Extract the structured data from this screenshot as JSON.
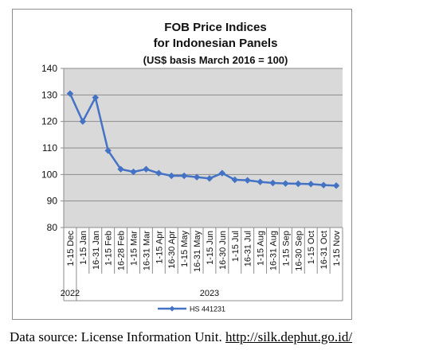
{
  "chart_data": {
    "type": "line",
    "title": [
      "FOB Price Indices",
      "for Indonesian Panels",
      "(US$ basis March 2016 = 100)"
    ],
    "ylim": [
      80,
      140
    ],
    "yticks": [
      80,
      90,
      100,
      110,
      120,
      130,
      140
    ],
    "categories": [
      "1-15 Dec",
      "1-15 Jan",
      "16-31 Jan",
      "1-15 Feb",
      "16-28 Feb",
      "1-15 Mar",
      "16-31 Mar",
      "1-15 Apr",
      "16-30 Apr",
      "1-15 May",
      "16-31 May",
      "1-15 Jun",
      "16-30 Jun",
      "1-15 Jul",
      "16-31 Jul",
      "1-15 Aug",
      "16-31 Aug",
      "1-15 Sep",
      "16-30 Sep",
      "1-15 Oct",
      "16-31 Oct",
      "1-15 Nov"
    ],
    "year_labels": [
      "2022",
      "2023"
    ],
    "series": [
      {
        "name": "HS 441231",
        "color": "#4472c4",
        "values": [
          130.5,
          120.0,
          129.0,
          109.0,
          102.0,
          101.0,
          102.0,
          100.5,
          99.5,
          99.5,
          99.0,
          98.5,
          100.5,
          98.0,
          97.8,
          97.2,
          96.8,
          96.6,
          96.5,
          96.4,
          96.0,
          95.8
        ]
      }
    ],
    "grid": true,
    "legend": "bottom"
  },
  "source": {
    "prefix": "Data source: License Information Unit. ",
    "url": "http://silk.dephut.go.id/"
  }
}
